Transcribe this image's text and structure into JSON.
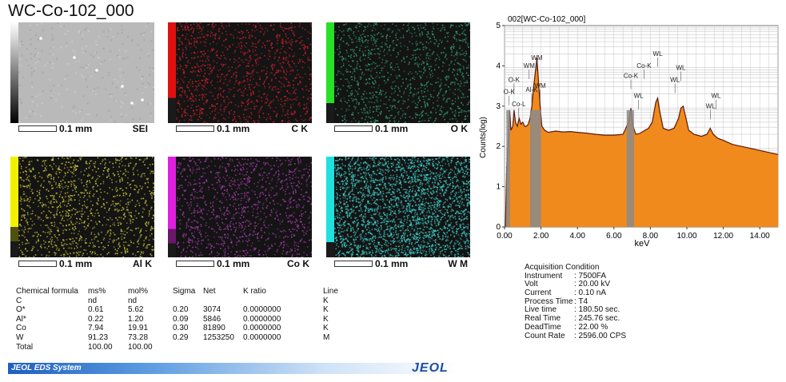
{
  "title": "WC-Co-102_000",
  "maps": [
    {
      "label": "SEI",
      "scale": "0.1 mm",
      "kind": "sei"
    },
    {
      "label": "C K",
      "scale": "0.1 mm",
      "color": "#c8202c",
      "swatch": [
        "#e01010",
        "#1a1a1a"
      ],
      "split": 0.75
    },
    {
      "label": "O K",
      "scale": "0.1 mm",
      "color": "#2f9a6a",
      "swatch": [
        "#28e028",
        "#1a1a1a"
      ],
      "split": 0.8
    },
    {
      "label": "Al K",
      "scale": "0.1 mm",
      "color": "#c9c23a",
      "swatch": [
        "#f0f000",
        "#505010",
        "#1a1a1a"
      ],
      "split": 0.7
    },
    {
      "label": "Co K",
      "scale": "0.1 mm",
      "color": "#a23aa8",
      "swatch": [
        "#e020e0",
        "#6a186a",
        "#1a1a1a"
      ],
      "split": 0.72
    },
    {
      "label": "W M",
      "scale": "0.1 mm",
      "color": "#3ccbc6",
      "swatch": [
        "#20e0e0",
        "#1a1a1a"
      ],
      "split": 0.85
    }
  ],
  "table": {
    "headers": [
      "Chemical formula",
      "ms%",
      "mol%",
      "Sigma",
      "Net",
      "K ratio",
      "Line"
    ],
    "rows": [
      [
        "C",
        "nd",
        "nd",
        "",
        "",
        "",
        "K"
      ],
      [
        "O*",
        "0.61",
        "5.62",
        "0.20",
        "3074",
        "0.0000000",
        "K"
      ],
      [
        "Al*",
        "0.22",
        "1.20",
        "0.09",
        "5846",
        "0.0000000",
        "K"
      ],
      [
        "Co",
        "7.94",
        "19.91",
        "0.30",
        "81890",
        "0.0000000",
        "K"
      ],
      [
        "W",
        "91.23",
        "73.28",
        "0.29",
        "1253250",
        "0.0000000",
        "M"
      ],
      [
        "Total",
        "100.00",
        "100.00",
        "",
        "",
        "",
        ""
      ]
    ]
  },
  "footer": {
    "system": "JEOL EDS System",
    "logo": "JEOL"
  },
  "acquisition": {
    "title": "Acquisition Condition",
    "items": [
      {
        "k": "Instrument",
        "v": ": 7500FA"
      },
      {
        "k": "Volt",
        "v": ": 20.00 kV"
      },
      {
        "k": "Current",
        "v": ": 0.10 nA"
      },
      {
        "k": "Process Time",
        "v": ": T4"
      },
      {
        "k": "Live time",
        "v": ": 180.50 sec."
      },
      {
        "k": "Real Time",
        "v": ": 245.76 sec."
      },
      {
        "k": "DeadTime",
        "v": ": 22.00 %"
      },
      {
        "k": "Count Rate",
        "v": ": 2596.00 CPS"
      }
    ]
  },
  "chart_data": {
    "type": "area",
    "title": "002[WC-Co-102_000]",
    "xlabel": "keV",
    "ylabel": "Counts(log)",
    "xlim": [
      0,
      15
    ],
    "ylim": [
      0,
      5
    ],
    "xticks": [
      "0.00",
      "2.00",
      "4.00",
      "6.00",
      "8.00",
      "10.00",
      "12.00",
      "14.00"
    ],
    "yticks": [
      "0",
      "1",
      "2",
      "3",
      "4",
      "5"
    ],
    "fill_color": "#f08a1c",
    "line_color": "#5a1a10",
    "spectrum": [
      [
        0.05,
        0
      ],
      [
        0.12,
        1.5
      ],
      [
        0.22,
        2.2
      ],
      [
        0.28,
        2.9
      ],
      [
        0.35,
        2.4
      ],
      [
        0.45,
        2.5
      ],
      [
        0.52,
        2.9
      ],
      [
        0.6,
        2.6
      ],
      [
        0.7,
        2.5
      ],
      [
        0.8,
        2.7
      ],
      [
        0.9,
        2.55
      ],
      [
        1.0,
        2.6
      ],
      [
        1.1,
        2.5
      ],
      [
        1.2,
        2.5
      ],
      [
        1.3,
        2.55
      ],
      [
        1.4,
        2.7
      ],
      [
        1.5,
        3.0
      ],
      [
        1.6,
        3.5
      ],
      [
        1.7,
        3.9
      ],
      [
        1.775,
        4.2
      ],
      [
        1.85,
        3.7
      ],
      [
        1.95,
        3.0
      ],
      [
        2.05,
        2.5
      ],
      [
        2.2,
        2.4
      ],
      [
        2.4,
        2.35
      ],
      [
        2.8,
        2.38
      ],
      [
        3.2,
        2.36
      ],
      [
        3.6,
        2.37
      ],
      [
        4.0,
        2.35
      ],
      [
        4.5,
        2.33
      ],
      [
        5.0,
        2.3
      ],
      [
        5.5,
        2.28
      ],
      [
        6.0,
        2.28
      ],
      [
        6.5,
        2.3
      ],
      [
        6.8,
        2.6
      ],
      [
        6.93,
        2.95
      ],
      [
        7.05,
        2.5
      ],
      [
        7.2,
        2.3
      ],
      [
        7.4,
        2.32
      ],
      [
        7.7,
        2.4
      ],
      [
        7.9,
        2.45
      ],
      [
        8.1,
        2.6
      ],
      [
        8.3,
        3.1
      ],
      [
        8.4,
        3.2
      ],
      [
        8.5,
        2.9
      ],
      [
        8.7,
        2.45
      ],
      [
        9.0,
        2.4
      ],
      [
        9.3,
        2.45
      ],
      [
        9.55,
        2.7
      ],
      [
        9.67,
        2.95
      ],
      [
        9.8,
        3.0
      ],
      [
        9.95,
        2.7
      ],
      [
        10.1,
        2.4
      ],
      [
        10.4,
        2.3
      ],
      [
        10.8,
        2.25
      ],
      [
        11.1,
        2.3
      ],
      [
        11.28,
        2.45
      ],
      [
        11.45,
        2.3
      ],
      [
        11.7,
        2.2
      ],
      [
        12.0,
        2.15
      ],
      [
        12.5,
        2.05
      ],
      [
        13.0,
        2.0
      ],
      [
        13.5,
        1.95
      ],
      [
        14.0,
        1.9
      ],
      [
        14.5,
        1.85
      ],
      [
        15.0,
        1.8
      ]
    ],
    "grey_bands": [
      [
        1.4,
        2.0
      ],
      [
        6.7,
        7.1
      ],
      [
        0.1,
        0.3
      ]
    ],
    "peak_labels": [
      {
        "text": "WM",
        "x": 1.775,
        "y": 4.15
      },
      {
        "text": "WM",
        "x": 1.35,
        "y": 3.95
      },
      {
        "text": "O-K",
        "x": 0.52,
        "y": 3.6
      },
      {
        "text": "O-K",
        "x": 0.25,
        "y": 3.3
      },
      {
        "text": "Co-L",
        "x": 0.78,
        "y": 3.0
      },
      {
        "text": "Al-K",
        "x": 1.49,
        "y": 3.35
      },
      {
        "text": "WM",
        "x": 1.95,
        "y": 3.45
      },
      {
        "text": "Co-K",
        "x": 6.93,
        "y": 3.7
      },
      {
        "text": "Co-K",
        "x": 7.65,
        "y": 3.95
      },
      {
        "text": "WL",
        "x": 8.4,
        "y": 4.25
      },
      {
        "text": "WL",
        "x": 9.67,
        "y": 3.9
      },
      {
        "text": "WL",
        "x": 9.35,
        "y": 3.6
      },
      {
        "text": "WL",
        "x": 7.35,
        "y": 3.2
      },
      {
        "text": "WL",
        "x": 11.6,
        "y": 3.2
      },
      {
        "text": "WL",
        "x": 11.3,
        "y": 2.95
      }
    ]
  }
}
